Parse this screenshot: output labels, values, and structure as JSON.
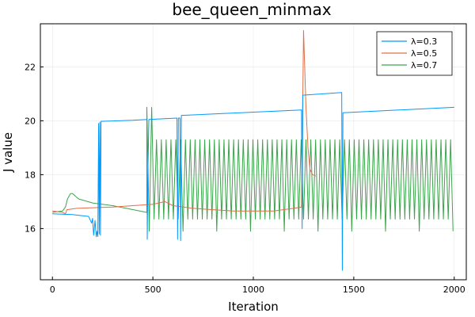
{
  "chart_data": {
    "type": "line",
    "title": "bee_queen_minmax",
    "xlabel": "Iteration",
    "ylabel": "J value",
    "xlim": [
      -60,
      2060
    ],
    "ylim": [
      14.1,
      23.6
    ],
    "xticks": [
      0,
      500,
      1000,
      1500,
      2000
    ],
    "yticks": [
      16,
      18,
      20,
      22
    ],
    "grid": true,
    "legend_position": "top-right",
    "series": [
      {
        "name": "λ=0.3",
        "color": "#009af9",
        "points": [
          [
            0,
            16.55
          ],
          [
            100,
            16.52
          ],
          [
            180,
            16.45
          ],
          [
            195,
            16.2
          ],
          [
            200,
            16.38
          ],
          [
            205,
            15.75
          ],
          [
            212,
            16.3
          ],
          [
            218,
            15.7
          ],
          [
            222,
            15.9
          ],
          [
            226,
            15.7
          ],
          [
            230,
            19.9
          ],
          [
            233,
            15.8
          ],
          [
            236,
            19.95
          ],
          [
            239,
            15.75
          ],
          [
            242,
            19.98
          ],
          [
            400,
            20.02
          ],
          [
            470,
            20.05
          ],
          [
            472,
            15.6
          ],
          [
            476,
            18.4
          ],
          [
            480,
            20.05
          ],
          [
            620,
            20.1
          ],
          [
            623,
            15.6
          ],
          [
            627,
            20.1
          ],
          [
            635,
            20.1
          ],
          [
            638,
            15.55
          ],
          [
            642,
            20.2
          ],
          [
            1240,
            20.4
          ],
          [
            1243,
            16.0
          ],
          [
            1246,
            20.95
          ],
          [
            1440,
            21.05
          ],
          [
            1443,
            14.45
          ],
          [
            1446,
            20.3
          ],
          [
            2000,
            20.5
          ]
        ]
      },
      {
        "name": "λ=0.5",
        "color": "#e26f46",
        "points": [
          [
            0,
            16.65
          ],
          [
            50,
            16.6
          ],
          [
            65,
            16.55
          ],
          [
            72,
            16.7
          ],
          [
            120,
            16.75
          ],
          [
            300,
            16.8
          ],
          [
            500,
            16.9
          ],
          [
            560,
            17.0
          ],
          [
            600,
            16.85
          ],
          [
            700,
            16.75
          ],
          [
            900,
            16.65
          ],
          [
            1100,
            16.65
          ],
          [
            1200,
            16.75
          ],
          [
            1240,
            16.8
          ],
          [
            1250,
            23.35
          ],
          [
            1262,
            20.5
          ],
          [
            1272,
            19.0
          ],
          [
            1282,
            18.2
          ],
          [
            1295,
            18.0
          ],
          [
            1310,
            17.95
          ]
        ]
      },
      {
        "name": "λ=0.7",
        "color": "#3da44d",
        "points": [
          [
            0,
            16.6
          ],
          [
            50,
            16.65
          ],
          [
            65,
            16.8
          ],
          [
            75,
            17.1
          ],
          [
            90,
            17.3
          ],
          [
            100,
            17.3
          ],
          [
            130,
            17.1
          ],
          [
            200,
            16.95
          ],
          [
            300,
            16.85
          ],
          [
            470,
            16.6
          ]
        ],
        "oscillation": {
          "x_start": 470,
          "x_end": 2000,
          "period": 24,
          "high": 19.3,
          "low": 16.35,
          "spike_x": 478,
          "spike_high": 20.5,
          "deep_low": 15.9
        }
      }
    ]
  }
}
